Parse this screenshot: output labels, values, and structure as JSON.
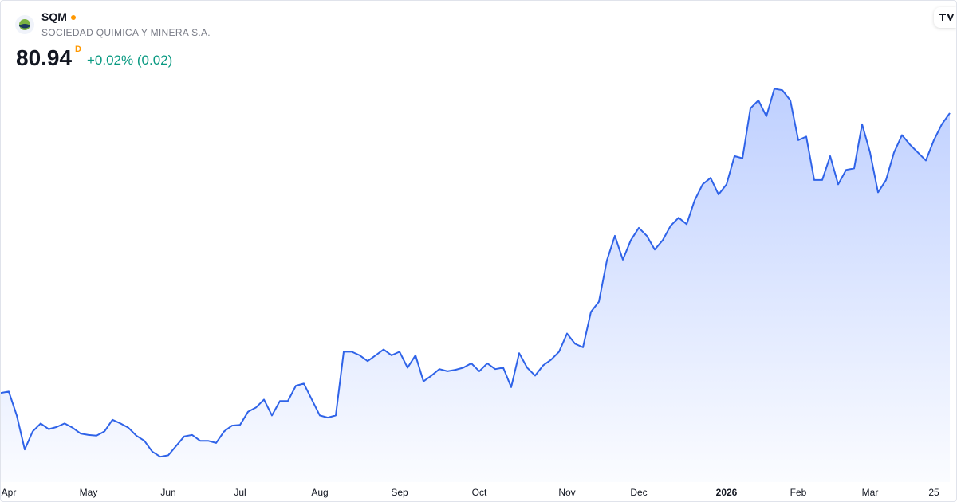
{
  "chart_data": {
    "type": "area",
    "title": "SQM",
    "subtitle": "SOCIEDAD QUIMICA Y MINERA S.A.",
    "price": 80.94,
    "price_flag": "D",
    "change_label": "+0.02% (0.02)",
    "color": "#2f63e8",
    "ylim": [
      30,
      96
    ],
    "categories": [
      null,
      "Apr",
      null,
      null,
      null,
      null,
      null,
      null,
      null,
      null,
      null,
      "May",
      null,
      null,
      null,
      null,
      null,
      null,
      null,
      null,
      null,
      "Jun",
      null,
      null,
      null,
      null,
      null,
      null,
      null,
      null,
      "Jul",
      null,
      null,
      null,
      null,
      null,
      null,
      null,
      null,
      null,
      "Aug",
      null,
      null,
      null,
      null,
      null,
      null,
      null,
      null,
      null,
      "Sep",
      null,
      null,
      null,
      null,
      null,
      null,
      null,
      null,
      null,
      "Oct",
      null,
      null,
      null,
      null,
      null,
      null,
      null,
      null,
      null,
      null,
      "Nov",
      null,
      null,
      null,
      null,
      null,
      null,
      null,
      null,
      "Dec",
      null,
      null,
      null,
      null,
      null,
      null,
      null,
      null,
      null,
      null,
      "2026",
      null,
      null,
      null,
      null,
      null,
      null,
      null,
      null,
      "Feb",
      null,
      null,
      null,
      null,
      null,
      null,
      null,
      null,
      "Mar",
      null,
      null,
      null,
      null,
      null,
      null,
      null,
      "25",
      null,
      null
    ],
    "values": [
      42.3,
      42.5,
      39.2,
      34.5,
      37.0,
      38.1,
      37.3,
      37.6,
      38.1,
      37.5,
      36.7,
      36.5,
      36.4,
      37.0,
      38.6,
      38.1,
      37.5,
      36.4,
      35.7,
      34.2,
      33.5,
      33.7,
      35.0,
      36.3,
      36.5,
      35.7,
      35.7,
      35.4,
      37.0,
      37.8,
      37.9,
      39.7,
      40.3,
      41.4,
      39.2,
      41.2,
      41.2,
      43.3,
      43.6,
      41.4,
      39.2,
      38.9,
      39.2,
      48.0,
      48.0,
      47.5,
      46.7,
      47.5,
      48.3,
      47.5,
      48.0,
      45.8,
      47.5,
      43.9,
      44.7,
      45.6,
      45.3,
      45.5,
      45.8,
      46.4,
      45.3,
      46.4,
      45.6,
      45.8,
      43.1,
      47.8,
      45.8,
      44.7,
      46.1,
      46.9,
      48.0,
      50.5,
      49.1,
      48.6,
      53.5,
      54.9,
      60.6,
      64.0,
      60.7,
      63.4,
      65.1,
      64.0,
      62.1,
      63.4,
      65.4,
      66.5,
      65.6,
      68.9,
      71.1,
      72.0,
      69.7,
      71.1,
      75.0,
      74.7,
      81.6,
      82.7,
      80.5,
      84.3,
      84.1,
      82.7,
      77.2,
      77.7,
      71.7,
      71.7,
      75.0,
      71.1,
      73.1,
      73.3,
      79.4,
      75.5,
      70.0,
      71.7,
      75.5,
      77.9,
      76.6,
      75.5,
      74.4,
      77.2,
      79.4,
      80.94
    ]
  }
}
